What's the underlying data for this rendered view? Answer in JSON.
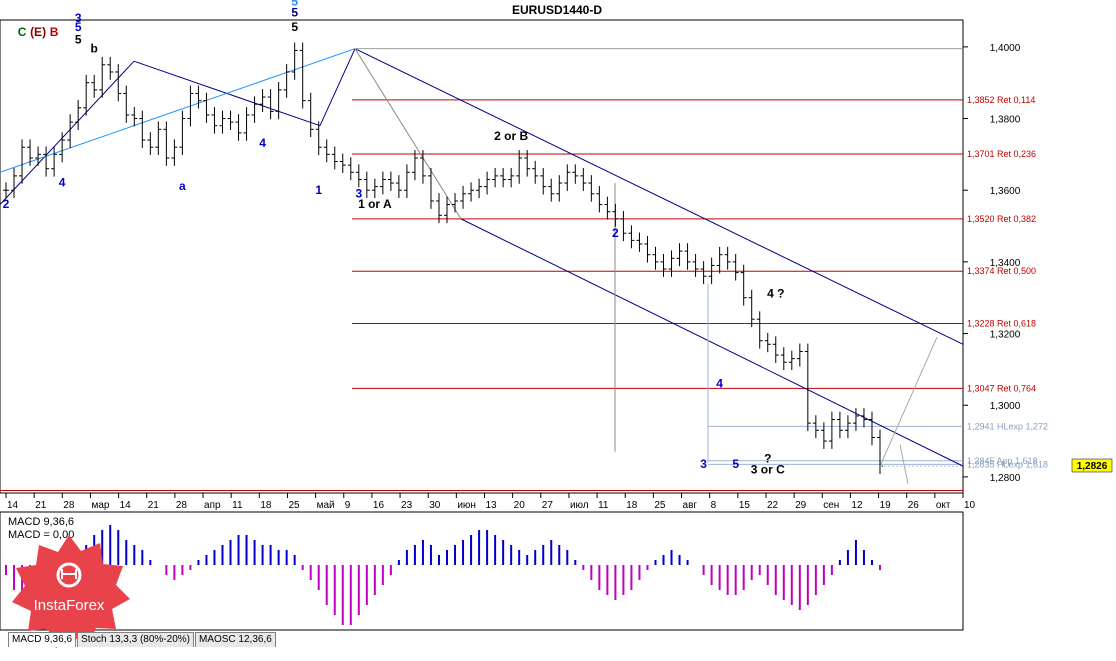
{
  "window": {
    "title": "EURUSD1440-D"
  },
  "colors": {
    "grid": "#000000",
    "ret_line": "#c00000",
    "channel": "#00008b",
    "trend": "#1e90ff",
    "proj": "#a9a9a9",
    "macd_pos": "#0000cd",
    "macd_neg": "#c000c0",
    "price_tag_bg": "#ffff00"
  },
  "indicator_panel": {
    "title_lines": [
      "MACD 9,36,6",
      "MACD = 0,00"
    ]
  },
  "tabs": [
    {
      "label": "MACD 9,36,6",
      "active": true
    },
    {
      "label": "Stoch 13,3,3 (80%-20%)",
      "active": false
    },
    {
      "label": "MAOSC 12,36,6",
      "active": false
    }
  ],
  "logo": {
    "text": "InstaForex"
  },
  "chart_data": {
    "type": "candlestick",
    "title": "EURUSD1440-D",
    "ylim": [
      1.2755,
      1.4075
    ],
    "current_price": "1,2826",
    "y_ticks": [
      {
        "value": 1.4,
        "label": "1,4000"
      },
      {
        "value": 1.38,
        "label": "1,3800"
      },
      {
        "value": 1.36,
        "label": "1,3600"
      },
      {
        "value": 1.34,
        "label": "1,3400"
      },
      {
        "value": 1.32,
        "label": "1,3200"
      },
      {
        "value": 1.3,
        "label": "1,3000"
      },
      {
        "value": 1.28,
        "label": "1,2800"
      }
    ],
    "x_ticks": [
      "14",
      "21",
      "28",
      "мар",
      "14",
      "21",
      "28",
      "апр",
      "11",
      "18",
      "25",
      "май",
      "9",
      "16",
      "23",
      "30",
      "июн",
      "13",
      "20",
      "27",
      "июл",
      "11",
      "18",
      "25",
      "авг",
      "8",
      "15",
      "22",
      "29",
      "сен",
      "12",
      "19",
      "26",
      "окт",
      "10"
    ],
    "retracement_levels": [
      {
        "value": 1.3852,
        "label": "1,3852 Ret 0,114"
      },
      {
        "value": 1.3701,
        "label": "1,3701 Ret 0,236"
      },
      {
        "value": 1.352,
        "label": "1,3520 Ret 0,382"
      },
      {
        "value": 1.3374,
        "label": "1,3374 Ret 0,500"
      },
      {
        "value": 1.3228,
        "label": "1,3228 Ret 0,618"
      },
      {
        "value": 1.3047,
        "label": "1,3047 Ret 0,764"
      }
    ],
    "expansion_levels": [
      {
        "value": 1.2941,
        "label": "1,2941 HLexp 1,272"
      },
      {
        "value": 1.2845,
        "label": "1,2845 App 1,618"
      },
      {
        "value": 1.2835,
        "label": "1,2835 HLexp 1,618"
      }
    ],
    "series": [
      {
        "name": "EURUSD daily close",
        "values": [
          1.36,
          1.364,
          1.372,
          1.369,
          1.37,
          1.366,
          1.37,
          1.374,
          1.379,
          1.383,
          1.39,
          1.388,
          1.395,
          1.393,
          1.387,
          1.381,
          1.38,
          1.374,
          1.372,
          1.377,
          1.369,
          1.372,
          1.38,
          1.387,
          1.385,
          1.381,
          1.378,
          1.38,
          1.379,
          1.376,
          1.381,
          1.384,
          1.386,
          1.382,
          1.388,
          1.393,
          1.399,
          1.385,
          1.377,
          1.372,
          1.37,
          1.368,
          1.367,
          1.365,
          1.363,
          1.36,
          1.361,
          1.363,
          1.362,
          1.36,
          1.365,
          1.369,
          1.364,
          1.357,
          1.353,
          1.356,
          1.357,
          1.359,
          1.36,
          1.361,
          1.363,
          1.364,
          1.363,
          1.364,
          1.369,
          1.366,
          1.364,
          1.361,
          1.359,
          1.362,
          1.365,
          1.364,
          1.362,
          1.359,
          1.356,
          1.354,
          1.352,
          1.348,
          1.346,
          1.345,
          1.342,
          1.34,
          1.338,
          1.341,
          1.343,
          1.34,
          1.338,
          1.336,
          1.339,
          1.342,
          1.34,
          1.337,
          1.33,
          1.324,
          1.318,
          1.317,
          1.314,
          1.312,
          1.313,
          1.315,
          1.295,
          1.293,
          1.29,
          1.296,
          1.293,
          1.295,
          1.297,
          1.296,
          1.291,
          1.283
        ]
      },
      {
        "name": "MACD 9,36,6",
        "values": [
          -0.2,
          -0.5,
          -0.7,
          -0.6,
          -0.5,
          -0.3,
          -0.2,
          -0.1,
          0.1,
          0.2,
          0.4,
          0.6,
          0.7,
          0.8,
          0.7,
          0.5,
          0.4,
          0.3,
          0.1,
          0.0,
          -0.2,
          -0.3,
          -0.2,
          -0.1,
          0.1,
          0.2,
          0.3,
          0.4,
          0.5,
          0.6,
          0.6,
          0.5,
          0.4,
          0.4,
          0.3,
          0.3,
          0.2,
          -0.1,
          -0.3,
          -0.5,
          -0.8,
          -1.0,
          -1.2,
          -1.2,
          -1.0,
          -0.8,
          -0.6,
          -0.4,
          -0.2,
          0.1,
          0.3,
          0.4,
          0.5,
          0.4,
          0.2,
          0.3,
          0.4,
          0.5,
          0.6,
          0.7,
          0.7,
          0.6,
          0.5,
          0.4,
          0.3,
          0.2,
          0.3,
          0.4,
          0.5,
          0.4,
          0.3,
          0.1,
          -0.1,
          -0.3,
          -0.5,
          -0.6,
          -0.7,
          -0.6,
          -0.5,
          -0.3,
          -0.1,
          0.1,
          0.2,
          0.3,
          0.2,
          0.1,
          0.0,
          -0.2,
          -0.4,
          -0.5,
          -0.6,
          -0.6,
          -0.5,
          -0.3,
          -0.2,
          -0.4,
          -0.6,
          -0.7,
          -0.8,
          -0.9,
          -0.8,
          -0.6,
          -0.4,
          -0.2,
          0.1,
          0.3,
          0.5,
          0.3,
          0.1,
          -0.1
        ]
      }
    ],
    "wave_labels": [
      {
        "text": "3",
        "color": "#0000cd",
        "x_index": 9,
        "y": 1.407
      },
      {
        "text": "5",
        "color": "#0000cd",
        "x_index": 9,
        "y": 1.4045
      },
      {
        "text": "5",
        "color": "#000000",
        "x_index": 9,
        "y": 1.401
      },
      {
        "text": "b",
        "color": "#000000",
        "x_index": 11,
        "y": 1.3985
      },
      {
        "text": "5",
        "color": "#1e90ff",
        "x_index": 36,
        "y": 1.4115
      },
      {
        "text": "5",
        "color": "#00008b",
        "x_index": 36,
        "y": 1.4085
      },
      {
        "text": "5",
        "color": "#000000",
        "x_index": 36,
        "y": 1.4045
      },
      {
        "text": "C",
        "color": "#006400",
        "x_index": 2,
        "y": 1.403
      },
      {
        "text": "(E)",
        "color": "#8b0000",
        "x_index": 4,
        "y": 1.403
      },
      {
        "text": "B",
        "color": "#c00000",
        "x_index": 6,
        "y": 1.403
      },
      {
        "text": "1 or A",
        "color": "#000000",
        "x_index": 46,
        "y": 1.355
      },
      {
        "text": "2 or B",
        "color": "#000000",
        "x_index": 63,
        "y": 1.374
      },
      {
        "text": "4 ?",
        "color": "#000000",
        "x_index": 96,
        "y": 1.33
      },
      {
        "text": "?",
        "color": "#000000",
        "x_index": 95,
        "y": 1.284
      },
      {
        "text": "3 or C",
        "color": "#000000",
        "x_index": 95,
        "y": 1.281
      },
      {
        "text": "2",
        "color": "#0000cd",
        "x_index": 0,
        "y": 1.355
      },
      {
        "text": "4",
        "color": "#0000cd",
        "x_index": 7,
        "y": 1.361
      },
      {
        "text": "a",
        "color": "#0000cd",
        "x_index": 22,
        "y": 1.36
      },
      {
        "text": "4",
        "color": "#0000cd",
        "x_index": 32,
        "y": 1.372
      },
      {
        "text": "1",
        "color": "#0000cd",
        "x_index": 39,
        "y": 1.359
      },
      {
        "text": "3",
        "color": "#0000cd",
        "x_index": 44,
        "y": 1.358
      },
      {
        "text": "2",
        "color": "#0000cd",
        "x_index": 76,
        "y": 1.347
      },
      {
        "text": "4",
        "color": "#0000cd",
        "x_index": 89,
        "y": 1.305
      },
      {
        "text": "3",
        "color": "#0000cd",
        "x_index": 87,
        "y": 1.2825
      },
      {
        "text": "5",
        "color": "#0000cd",
        "x_index": 91,
        "y": 1.2825
      }
    ]
  }
}
